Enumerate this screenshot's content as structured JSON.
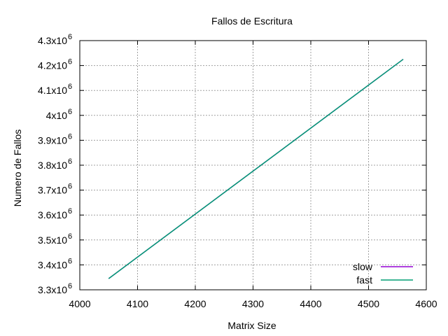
{
  "chart_data": {
    "type": "line",
    "title": "Fallos de Escritura",
    "xlabel": "Matrix Size",
    "ylabel": "Numero de Fallos",
    "xlim": [
      4000,
      4600
    ],
    "ylim": [
      3300000,
      4300000
    ],
    "x_ticks": [
      4000,
      4100,
      4200,
      4300,
      4400,
      4500,
      4600
    ],
    "y_ticks": [
      {
        "value": 3300000,
        "mantissa": "3.3x10",
        "exp": "6"
      },
      {
        "value": 3400000,
        "mantissa": "3.4x10",
        "exp": "6"
      },
      {
        "value": 3500000,
        "mantissa": "3.5x10",
        "exp": "6"
      },
      {
        "value": 3600000,
        "mantissa": "3.6x10",
        "exp": "6"
      },
      {
        "value": 3700000,
        "mantissa": "3.7x10",
        "exp": "6"
      },
      {
        "value": 3800000,
        "mantissa": "3.8x10",
        "exp": "6"
      },
      {
        "value": 3900000,
        "mantissa": "3.9x10",
        "exp": "6"
      },
      {
        "value": 4000000,
        "mantissa": "4x10",
        "exp": "6"
      },
      {
        "value": 4100000,
        "mantissa": "4.1x10",
        "exp": "6"
      },
      {
        "value": 4200000,
        "mantissa": "4.2x10",
        "exp": "6"
      },
      {
        "value": 4300000,
        "mantissa": "4.3x10",
        "exp": "6"
      }
    ],
    "grid": true,
    "legend_position": "bottom-right",
    "series": [
      {
        "name": "slow",
        "color": "#9400d3",
        "x": [
          4050,
          4560
        ],
        "y": [
          3345000,
          4225000
        ]
      },
      {
        "name": "fast",
        "color": "#009e73",
        "x": [
          4050,
          4560
        ],
        "y": [
          3345000,
          4225000
        ]
      }
    ]
  }
}
